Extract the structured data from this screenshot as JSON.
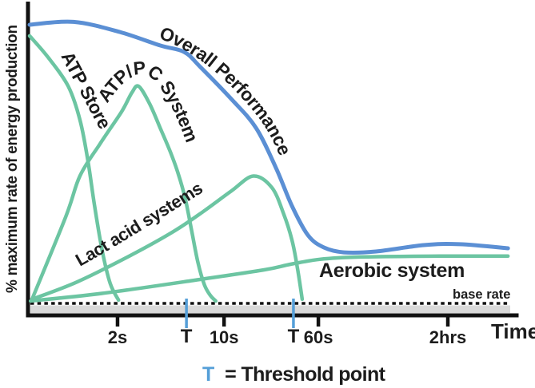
{
  "colors": {
    "curve_green": "#6cc5a2",
    "curve_blue": "#5b8fd4",
    "threshold_blue": "#559fd8",
    "axis_black": "#111111",
    "band_gray": "#d9d9d9",
    "text_black": "#1c1c1c",
    "background": "#ffffff"
  },
  "chart_data": {
    "type": "line",
    "y_axis": {
      "label": "% maximum rate of energy production",
      "range_pct": [
        0,
        100
      ],
      "numeric_ticks": "none"
    },
    "x_axis": {
      "label": "Time",
      "scale": "nonlinear",
      "ticks": [
        {
          "label": "2s",
          "x": 0.18,
          "threshold": false
        },
        {
          "label": "T",
          "x": 0.321,
          "threshold": true
        },
        {
          "label": "10s",
          "x": 0.398,
          "threshold": false
        },
        {
          "label": "T",
          "x": 0.54,
          "threshold": true
        },
        {
          "label": "60s",
          "x": 0.591,
          "threshold": false
        },
        {
          "label": "2hrs",
          "x": 0.856,
          "threshold": false
        }
      ]
    },
    "base_rate": {
      "label": "base rate",
      "value_pct": 3.3
    },
    "legend": {
      "symbol": "T",
      "text": "= Threshold point"
    },
    "series": [
      {
        "name": "Overall Performance",
        "color": "#5b8fd4",
        "points": [
          [
            0.0,
            98.9
          ],
          [
            0.09,
            99.9
          ],
          [
            0.185,
            96.4
          ],
          [
            0.267,
            91.8
          ],
          [
            0.316,
            89.6
          ],
          [
            0.349,
            84.5
          ],
          [
            0.414,
            73.2
          ],
          [
            0.463,
            63.6
          ],
          [
            0.504,
            49.9
          ],
          [
            0.537,
            36.7
          ],
          [
            0.57,
            26.6
          ],
          [
            0.602,
            22.5
          ],
          [
            0.643,
            20.8
          ],
          [
            0.709,
            21.1
          ],
          [
            0.807,
            23.3
          ],
          [
            0.88,
            23.6
          ],
          [
            0.979,
            22.2
          ]
        ]
      },
      {
        "name": "ATP Store",
        "color": "#6cc5a2",
        "points": [
          [
            0.0,
            95.1
          ],
          [
            0.038,
            87.7
          ],
          [
            0.079,
            77.8
          ],
          [
            0.103,
            66.3
          ],
          [
            0.119,
            52.6
          ],
          [
            0.133,
            36.7
          ],
          [
            0.149,
            21.1
          ],
          [
            0.165,
            10.1
          ],
          [
            0.182,
            4.4
          ]
        ]
      },
      {
        "name": "ATP/PC System",
        "color": "#6cc5a2",
        "points": [
          [
            0.005,
            4.7
          ],
          [
            0.074,
            33.0
          ],
          [
            0.103,
            47.0
          ],
          [
            0.144,
            58.0
          ],
          [
            0.188,
            69.0
          ],
          [
            0.209,
            75.5
          ],
          [
            0.223,
            77.8
          ],
          [
            0.245,
            72.0
          ],
          [
            0.267,
            63.6
          ],
          [
            0.288,
            55.3
          ],
          [
            0.304,
            47.9
          ],
          [
            0.319,
            38.9
          ],
          [
            0.332,
            27.9
          ],
          [
            0.345,
            17.0
          ],
          [
            0.358,
            9.6
          ],
          [
            0.37,
            6.0
          ],
          [
            0.381,
            4.1
          ]
        ]
      },
      {
        "name": "Lact acid systems",
        "color": "#6cc5a2",
        "points": [
          [
            0.005,
            4.7
          ],
          [
            0.098,
            10.7
          ],
          [
            0.206,
            19.7
          ],
          [
            0.295,
            28.0
          ],
          [
            0.357,
            35.0
          ],
          [
            0.414,
            42.0
          ],
          [
            0.458,
            47.0
          ],
          [
            0.496,
            43.0
          ],
          [
            0.52,
            34.0
          ],
          [
            0.537,
            25.0
          ],
          [
            0.548,
            15.6
          ],
          [
            0.558,
            4.7
          ]
        ]
      },
      {
        "name": "Aerobic system",
        "color": "#6cc5a2",
        "points": [
          [
            0.002,
            4.1
          ],
          [
            0.152,
            6.8
          ],
          [
            0.349,
            11.5
          ],
          [
            0.48,
            14.8
          ],
          [
            0.534,
            16.7
          ],
          [
            0.594,
            18.4
          ],
          [
            0.676,
            19.2
          ],
          [
            0.84,
            19.5
          ],
          [
            0.979,
            19.5
          ]
        ]
      }
    ]
  }
}
